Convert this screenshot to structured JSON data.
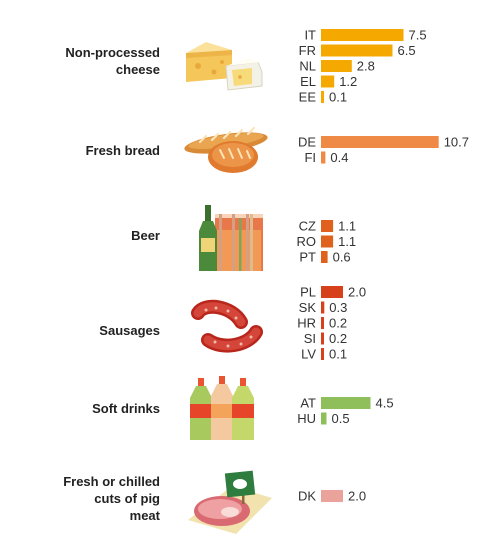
{
  "chart_data": {
    "type": "bar",
    "orientation": "horizontal",
    "grid": false,
    "xlim": [
      0,
      10.7
    ],
    "groups": [
      {
        "label": [
          "Non-processed",
          "cheese"
        ],
        "icon": "cheese-icon",
        "color": "#f5a800",
        "bars": [
          {
            "country": "IT",
            "value": 7.5,
            "label": "7.5"
          },
          {
            "country": "FR",
            "value": 6.5,
            "label": "6.5"
          },
          {
            "country": "NL",
            "value": 2.8,
            "label": "2.8"
          },
          {
            "country": "EL",
            "value": 1.2,
            "label": "1.2"
          },
          {
            "country": "EE",
            "value": 0.1,
            "label": "0.1"
          }
        ]
      },
      {
        "label": [
          "Fresh bread"
        ],
        "icon": "bread-icon",
        "color": "#ef8a46",
        "bars": [
          {
            "country": "DE",
            "value": 10.7,
            "label": "10.7"
          },
          {
            "country": "FI",
            "value": 0.4,
            "label": "0.4"
          }
        ]
      },
      {
        "label": [
          "Beer"
        ],
        "icon": "beer-icon",
        "color": "#e0601d",
        "bars": [
          {
            "country": "CZ",
            "value": 1.1,
            "label": "1.1"
          },
          {
            "country": "RO",
            "value": 1.1,
            "label": "1.1"
          },
          {
            "country": "PT",
            "value": 0.6,
            "label": "0.6"
          }
        ]
      },
      {
        "label": [
          "Sausages"
        ],
        "icon": "sausage-icon",
        "color": "#d6411b",
        "bars": [
          {
            "country": "PL",
            "value": 2.0,
            "label": "2.0"
          },
          {
            "country": "SK",
            "value": 0.3,
            "label": "0.3"
          },
          {
            "country": "HR",
            "value": 0.2,
            "label": "0.2"
          },
          {
            "country": "SI",
            "value": 0.2,
            "label": "0.2"
          },
          {
            "country": "LV",
            "value": 0.1,
            "label": "0.1"
          }
        ]
      },
      {
        "label": [
          "Soft drinks"
        ],
        "icon": "soft-drinks-icon",
        "color": "#8fbf5a",
        "bars": [
          {
            "country": "AT",
            "value": 4.5,
            "label": "4.5"
          },
          {
            "country": "HU",
            "value": 0.5,
            "label": "0.5"
          }
        ]
      },
      {
        "label": [
          "Fresh or chilled",
          "cuts of pig",
          "meat"
        ],
        "icon": "pig-meat-icon",
        "color": "#e9a39b",
        "bars": [
          {
            "country": "DK",
            "value": 2.0,
            "label": "2.0"
          }
        ]
      }
    ]
  }
}
